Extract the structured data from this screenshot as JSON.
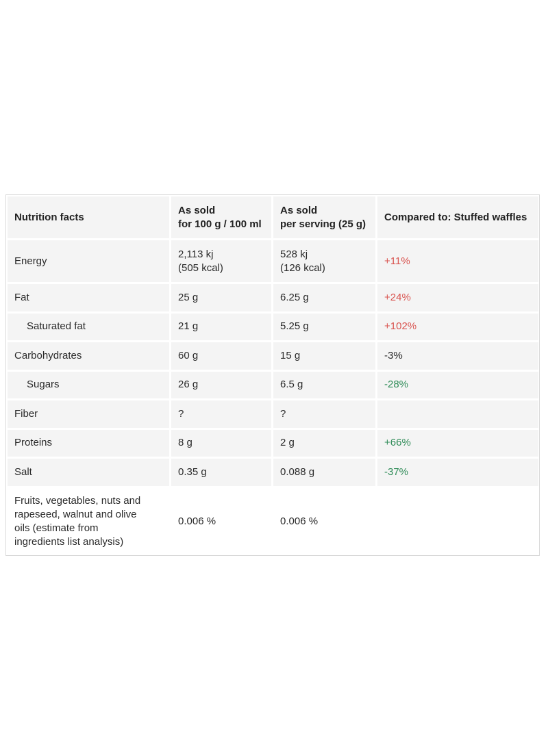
{
  "table": {
    "headers": [
      {
        "lines": [
          "Nutrition facts"
        ]
      },
      {
        "lines": [
          "As sold",
          "for 100 g / 100 ml"
        ]
      },
      {
        "lines": [
          "As sold",
          "per serving (25 g)"
        ]
      },
      {
        "lines": [
          "Compared to: Stuffed waffles"
        ]
      }
    ],
    "rows": [
      {
        "name": "Energy",
        "per100": [
          "2,113 kj",
          "(505 kcal)"
        ],
        "serving": [
          "528 kj",
          "(126 kcal)"
        ],
        "compare": "+11%",
        "compare_color": "#d9534f"
      },
      {
        "name": "Fat",
        "per100": [
          "25 g"
        ],
        "serving": [
          "6.25 g"
        ],
        "compare": "+24%",
        "compare_color": "#d9534f"
      },
      {
        "name": "Saturated fat",
        "per100": [
          "21 g"
        ],
        "serving": [
          "5.25 g"
        ],
        "compare": "+102%",
        "compare_color": "#d9534f"
      },
      {
        "name": "Carbohydrates",
        "per100": [
          "60 g"
        ],
        "serving": [
          "15 g"
        ],
        "compare": "-3%",
        "compare_color": "#2a2a2a"
      },
      {
        "name": "Sugars",
        "per100": [
          "26 g"
        ],
        "serving": [
          "6.5 g"
        ],
        "compare": "-28%",
        "compare_color": "#2e8b57"
      },
      {
        "name": "Fiber",
        "per100": [
          "?"
        ],
        "serving": [
          "?"
        ],
        "compare": "",
        "compare_color": "#2a2a2a"
      },
      {
        "name": "Proteins",
        "per100": [
          "8 g"
        ],
        "serving": [
          "2 g"
        ],
        "compare": "+66%",
        "compare_color": "#2e8b57"
      },
      {
        "name": "Salt",
        "per100": [
          "0.35 g"
        ],
        "serving": [
          "0.088 g"
        ],
        "compare": "-37%",
        "compare_color": "#2e8b57"
      },
      {
        "name_lines": [
          "Fruits, vegetables, nuts and",
          "rapeseed, walnut and olive",
          "oils (estimate from",
          "ingredients list analysis)"
        ],
        "per100": [
          "0.006 %"
        ],
        "serving": [
          "0.006 %"
        ],
        "compare": ""
      }
    ]
  },
  "colors": {
    "increase": "#d9534f",
    "decrease": "#2e8b57",
    "neutral": "#2a2a2a"
  }
}
